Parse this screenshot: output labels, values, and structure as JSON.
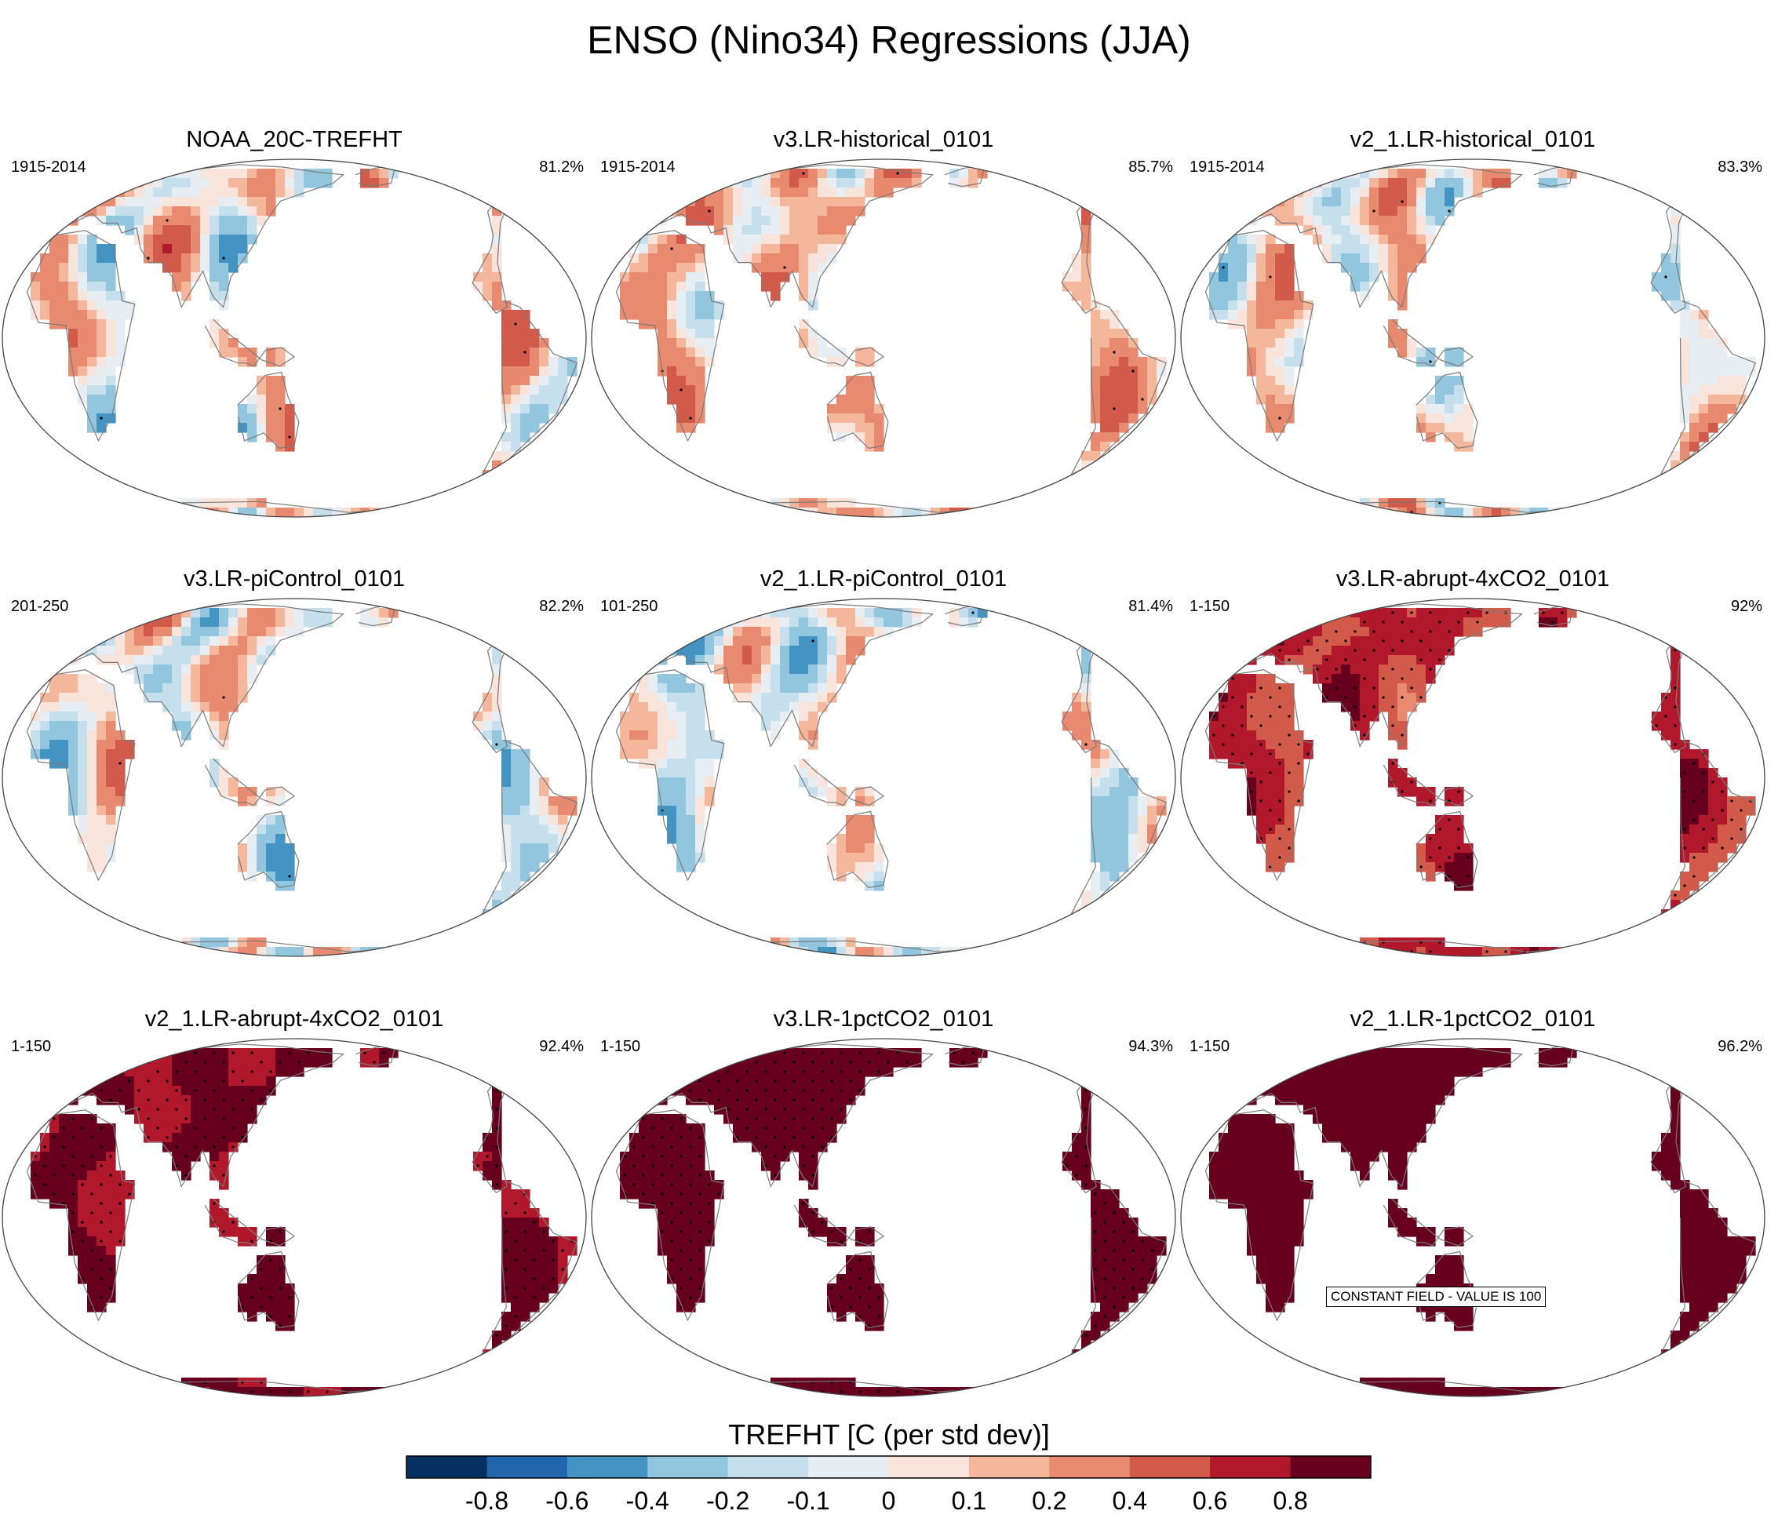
{
  "figure": {
    "title": "ENSO (Nino34) Regressions (JJA)",
    "panels": [
      {
        "title": "NOAA_20C-TREFHT",
        "period": "1915-2014",
        "pct": "81.2%",
        "land_bias": 0.05,
        "amp": 0.35,
        "stipple": 0.25
      },
      {
        "title": "v3.LR-historical_0101",
        "period": "1915-2014",
        "pct": "85.7%",
        "land_bias": 0.12,
        "amp": 0.3,
        "stipple": 0.3
      },
      {
        "title": "v2_1.LR-historical_0101",
        "period": "1915-2014",
        "pct": "83.3%",
        "land_bias": 0.08,
        "amp": 0.32,
        "stipple": 0.28
      },
      {
        "title": "v3.LR-piControl_0101",
        "period": "201-250",
        "pct": "82.2%",
        "land_bias": 0.0,
        "amp": 0.35,
        "stipple": 0.15
      },
      {
        "title": "v2_1.LR-piControl_0101",
        "period": "101-250",
        "pct": "81.4%",
        "land_bias": -0.05,
        "amp": 0.3,
        "stipple": 0.15
      },
      {
        "title": "v3.LR-abrupt-4xCO2_0101",
        "period": "1-150",
        "pct": "92%",
        "land_bias": 0.65,
        "amp": 0.18,
        "stipple": 0.9
      },
      {
        "title": "v2_1.LR-abrupt-4xCO2_0101",
        "period": "1-150",
        "pct": "92.4%",
        "land_bias": 0.82,
        "amp": 0.12,
        "stipple": 0.95
      },
      {
        "title": "v3.LR-1pctCO2_0101",
        "period": "1-150",
        "pct": "94.3%",
        "land_bias": 1.0,
        "amp": 0.0,
        "stipple": 1.0
      },
      {
        "title": "v2_1.LR-1pctCO2_0101",
        "period": "1-150",
        "pct": "96.2%",
        "land_bias": 1.0,
        "amp": 0.0,
        "stipple": 0.0,
        "note": "CONSTANT FIELD - VALUE IS 100"
      }
    ]
  },
  "colorbar": {
    "title": "TREFHT [C (per std dev)]",
    "colors": [
      "#053061",
      "#2166ac",
      "#4393c3",
      "#92c5de",
      "#c5dfed",
      "#e6eef3",
      "#f8e4da",
      "#f4b79b",
      "#e88a6f",
      "#d25a4b",
      "#b2182b",
      "#67001f"
    ],
    "tick_labels": [
      "-0.8",
      "-0.6",
      "-0.4",
      "-0.2",
      "-0.1",
      "0",
      "0.1",
      "0.2",
      "0.4",
      "0.6",
      "0.8"
    ]
  },
  "levels": [
    -0.8,
    -0.6,
    -0.4,
    -0.2,
    -0.1,
    0,
    0.1,
    0.2,
    0.4,
    0.6,
    0.8
  ]
}
